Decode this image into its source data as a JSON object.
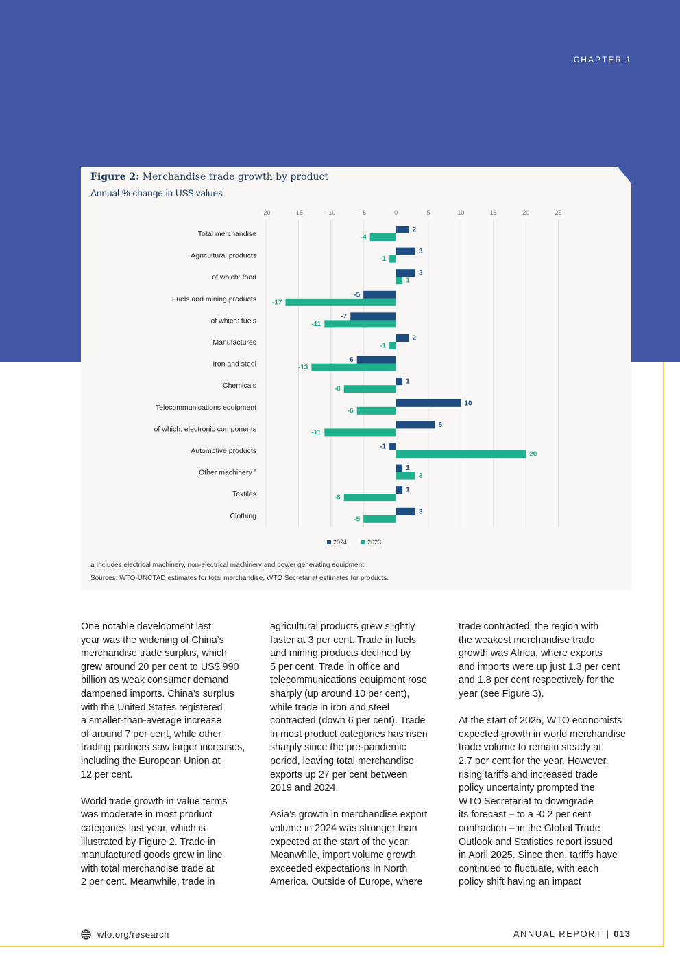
{
  "header": {
    "chapter": "CHAPTER 1"
  },
  "figure": {
    "label": "Figure 2:",
    "title": "Merchandise trade growth by product",
    "subtitle": "Annual % change in US$ values",
    "footnote": "a Includes electrical machinery, non-electrical machinery and power generating equipment.",
    "sources": "Sources: WTO-UNCTAD estimates for total merchandise, WTO Secretariat estimates for products."
  },
  "chart_data": {
    "type": "bar",
    "orientation": "horizontal",
    "categories": [
      "Total merchandise",
      "Agricultural products",
      "of which: food",
      "Fuels and mining products",
      "of which: fuels",
      "Manufactures",
      "Iron and steel",
      "Chemicals",
      "Telecommunications equipment",
      "of which: electronic components",
      "Automotive products",
      "Other machinery",
      "Textiles",
      "Clothing"
    ],
    "footnote_marker": {
      "category_index": 11,
      "marker": "a"
    },
    "series": [
      {
        "name": "2024",
        "color": "#1d4c80",
        "values": [
          2,
          3,
          3,
          -5,
          -7,
          2,
          -6,
          1,
          10,
          6,
          -1,
          1,
          1,
          3
        ]
      },
      {
        "name": "2023",
        "color": "#21b08e",
        "values": [
          -4,
          -1,
          1,
          -17,
          -11,
          -1,
          -13,
          -8,
          -6,
          -11,
          20,
          3,
          -8,
          -5
        ]
      }
    ],
    "xlim": [
      -20,
      25
    ],
    "ticks": [
      "-20",
      "-15",
      "-10",
      "-5",
      "0",
      "5",
      "10",
      "15",
      "20",
      "25"
    ],
    "grid": true,
    "legend": "bottom-center"
  },
  "columns": [
    "One notable development last\nyear was the widening of China’s\nmerchandise trade surplus, which\ngrew around 20 per cent to US$ 990\nbillion as weak consumer demand\ndampened imports. China’s surplus\nwith the United States registered\na smaller-than-average increase\nof around 7 per cent, while other\ntrading partners saw larger increases,\nincluding the European Union at\n12 per cent.\n\nWorld trade growth in value terms\nwas moderate in most product\ncategories last year, which is\nillustrated by Figure 2. Trade in\nmanufactured goods grew in line\nwith total merchandise trade at\n2 per cent. Meanwhile, trade in",
    "agricultural products grew slightly\nfaster at 3 per cent. Trade in fuels\nand mining products declined by\n5 per cent. Trade in office and\ntelecommunications equipment rose\nsharply (up around 10 per cent),\nwhile trade in iron and steel\ncontracted (down 6 per cent). Trade\nin most product categories has risen\nsharply since the pre-pandemic\nperiod, leaving total merchandise\nexports up 27 per cent between\n2019 and 2024.\n\nAsia’s growth in merchandise export\nvolume in 2024 was stronger than\nexpected at the start of the year.\nMeanwhile, import volume growth\nexceeded expectations in North\nAmerica. Outside of Europe, where",
    "trade contracted, the region with\nthe weakest merchandise trade\ngrowth was Africa, where exports\nand imports were up just 1.3 per cent\nand 1.8 per cent respectively for the\nyear (see Figure 3).\n\nAt the start of 2025, WTO economists\nexpected growth in world merchandise\ntrade volume to remain steady at\n2.7 per cent for the year. However,\nrising tariffs and increased trade\npolicy uncertainty prompted the\nWTO Secretariat to downgrade\nits forecast – to a -0.2 per cent\ncontraction – in the Global Trade\nOutlook and Statistics report issued\nin April 2025. Since then, tariffs have\ncontinued to fluctuate, with each\npolicy shift having an impact"
  ],
  "footer": {
    "url": "wto.org/research",
    "report": "ANNUAL REPORT",
    "separator": "|",
    "page": "013"
  }
}
